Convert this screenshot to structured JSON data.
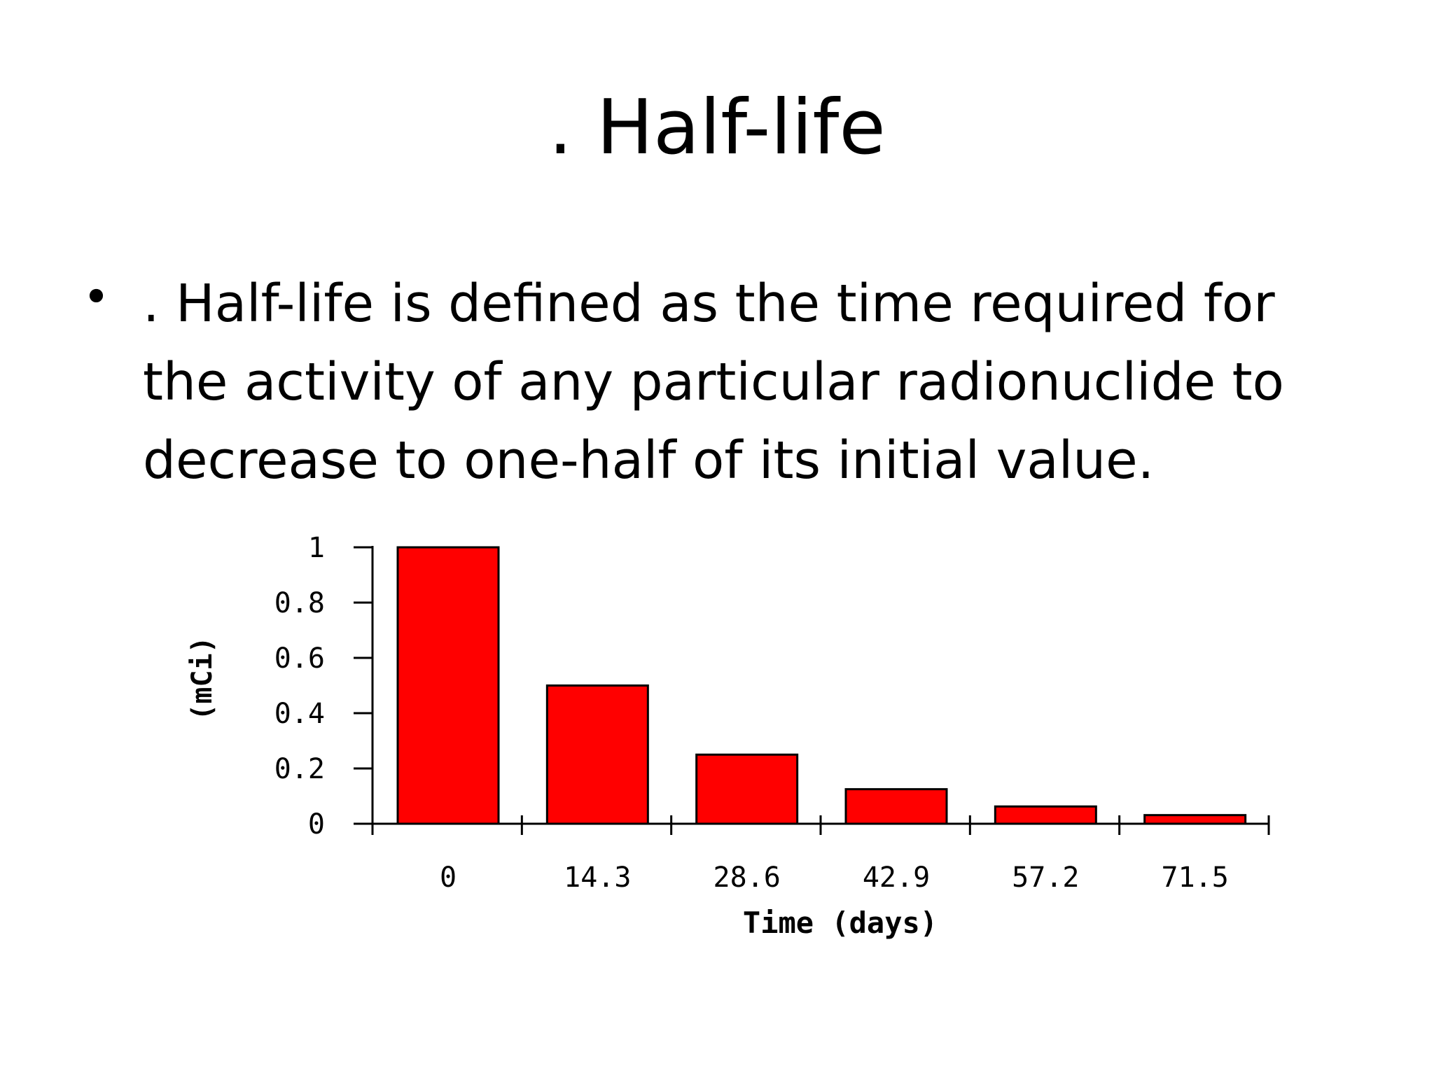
{
  "slide": {
    "title": ". Half-life",
    "bullet_glyph": "•",
    "bullet_text": ". Half-life is defined as the time required for the activity of any particular radionuclide to decrease to one-half of its initial value."
  },
  "chart_data": {
    "type": "bar",
    "categories": [
      "0",
      "14.3",
      "28.6",
      "42.9",
      "57.2",
      "71.5"
    ],
    "values": [
      1.0,
      0.5,
      0.25,
      0.125,
      0.0625,
      0.03125
    ],
    "ylim": [
      0,
      1
    ],
    "yticks": [
      "0",
      "0.2",
      "0.4",
      "0.6",
      "0.8",
      "1"
    ],
    "ytick_values": [
      0,
      0.2,
      0.4,
      0.6,
      0.8,
      1
    ],
    "xlabel": "Time (days)",
    "ylabel": "(mCi)",
    "bar_color": "#ff0000",
    "grid": false,
    "legend": "none"
  }
}
